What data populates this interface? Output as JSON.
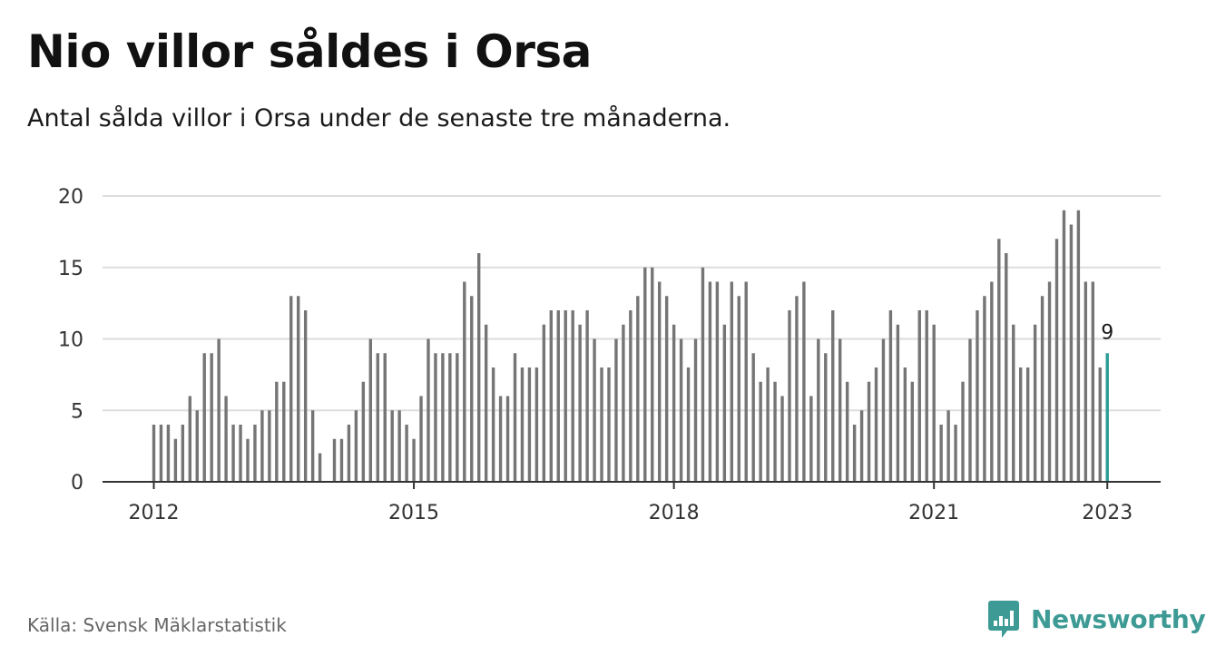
{
  "header": {
    "title": "Nio villor såldes i Orsa",
    "subtitle": "Antal sålda villor i Orsa under de senaste tre månaderna."
  },
  "footer": {
    "source": "Källa: Svensk Mäklarstatistik",
    "brand": "Newsworthy",
    "brand_icon": "bar-chart-logo-icon"
  },
  "colors": {
    "bar": "#757575",
    "highlight": "#2a9d96",
    "grid": "#dddddd",
    "axis": "#333333",
    "brand": "#3d9a94"
  },
  "chart_data": {
    "type": "bar",
    "title": "",
    "xlabel": "",
    "ylabel": "",
    "ylim": [
      0,
      20
    ],
    "yticks": [
      0,
      5,
      10,
      15,
      20
    ],
    "xtick_labels": [
      "2012",
      "2015",
      "2018",
      "2021",
      "2023"
    ],
    "grid": true,
    "start_year": 2012,
    "highlight_label": "9",
    "values": [
      4,
      4,
      4,
      3,
      4,
      6,
      5,
      9,
      9,
      10,
      6,
      4,
      4,
      3,
      4,
      5,
      5,
      7,
      7,
      13,
      13,
      12,
      5,
      2,
      null,
      3,
      3,
      4,
      5,
      7,
      10,
      9,
      9,
      5,
      5,
      4,
      3,
      6,
      10,
      9,
      9,
      9,
      9,
      14,
      13,
      16,
      11,
      8,
      6,
      6,
      9,
      8,
      8,
      8,
      11,
      12,
      12,
      12,
      12,
      11,
      12,
      10,
      8,
      8,
      10,
      11,
      12,
      13,
      15,
      15,
      14,
      13,
      11,
      10,
      8,
      10,
      15,
      14,
      14,
      11,
      14,
      13,
      14,
      9,
      7,
      8,
      7,
      6,
      12,
      13,
      14,
      6,
      10,
      9,
      12,
      10,
      7,
      4,
      5,
      7,
      8,
      10,
      12,
      11,
      8,
      7,
      12,
      12,
      11,
      4,
      5,
      4,
      7,
      10,
      12,
      13,
      14,
      17,
      16,
      11,
      8,
      8,
      11,
      13,
      14,
      17,
      19,
      18,
      19,
      14,
      14,
      8,
      9
    ]
  }
}
